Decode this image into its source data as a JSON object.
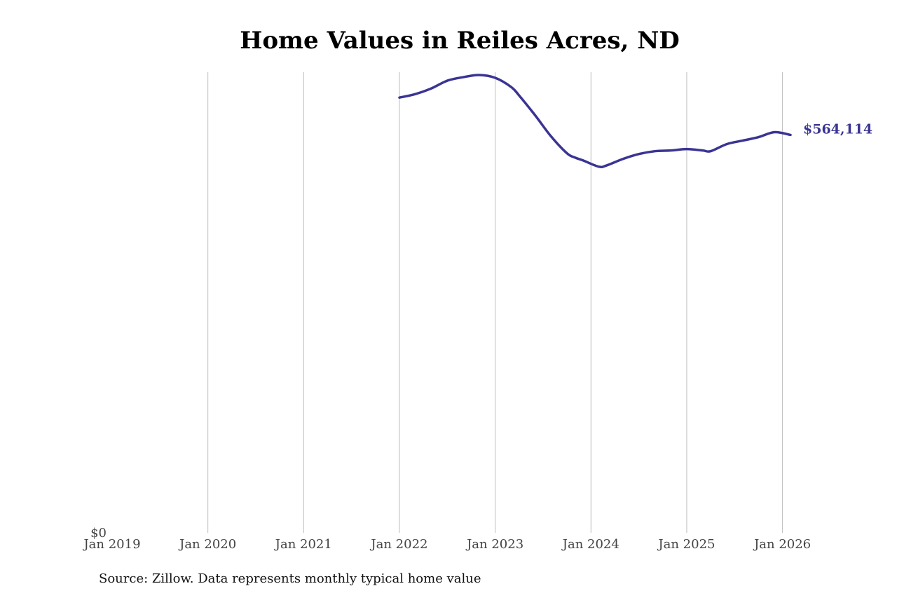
{
  "chart_data": {
    "type": "line",
    "title": "Home Values in Reiles Acres, ND",
    "xlabel": "",
    "ylabel": "",
    "x_ticks": [
      "Jan 2019",
      "Jan 2020",
      "Jan 2021",
      "Jan 2022",
      "Jan 2023",
      "Jan 2024",
      "Jan 2025",
      "Jan 2026"
    ],
    "y_ticks": [
      "$0"
    ],
    "xlim": [
      "2019-01",
      "2026-02"
    ],
    "ylim": [
      0,
      653000
    ],
    "grid": "vertical",
    "series_color": "#3a3494",
    "end_label": "$564,114",
    "series": [
      {
        "x": [
          "2022-01",
          "2022-03",
          "2022-05",
          "2022-07",
          "2022-09",
          "2022-11",
          "2023-01",
          "2023-03",
          "2023-04",
          "2023-06",
          "2023-08",
          "2023-10",
          "2023-11",
          "2023-12",
          "2024-02",
          "2024-03",
          "2024-05",
          "2024-07",
          "2024-09",
          "2024-11",
          "2025-01",
          "2025-03",
          "2025-04",
          "2025-06",
          "2025-08",
          "2025-10",
          "2025-12",
          "2026-02"
        ],
        "values": [
          617000,
          622000,
          630000,
          641000,
          646000,
          649000,
          645000,
          632000,
          620000,
          592000,
          562000,
          538000,
          532000,
          528000,
          519000,
          521000,
          530000,
          537000,
          541000,
          542000,
          544000,
          542000,
          541000,
          551000,
          556000,
          561000,
          568000,
          564114
        ]
      }
    ]
  },
  "source_note": "Source: Zillow. Data represents monthly typical home value"
}
